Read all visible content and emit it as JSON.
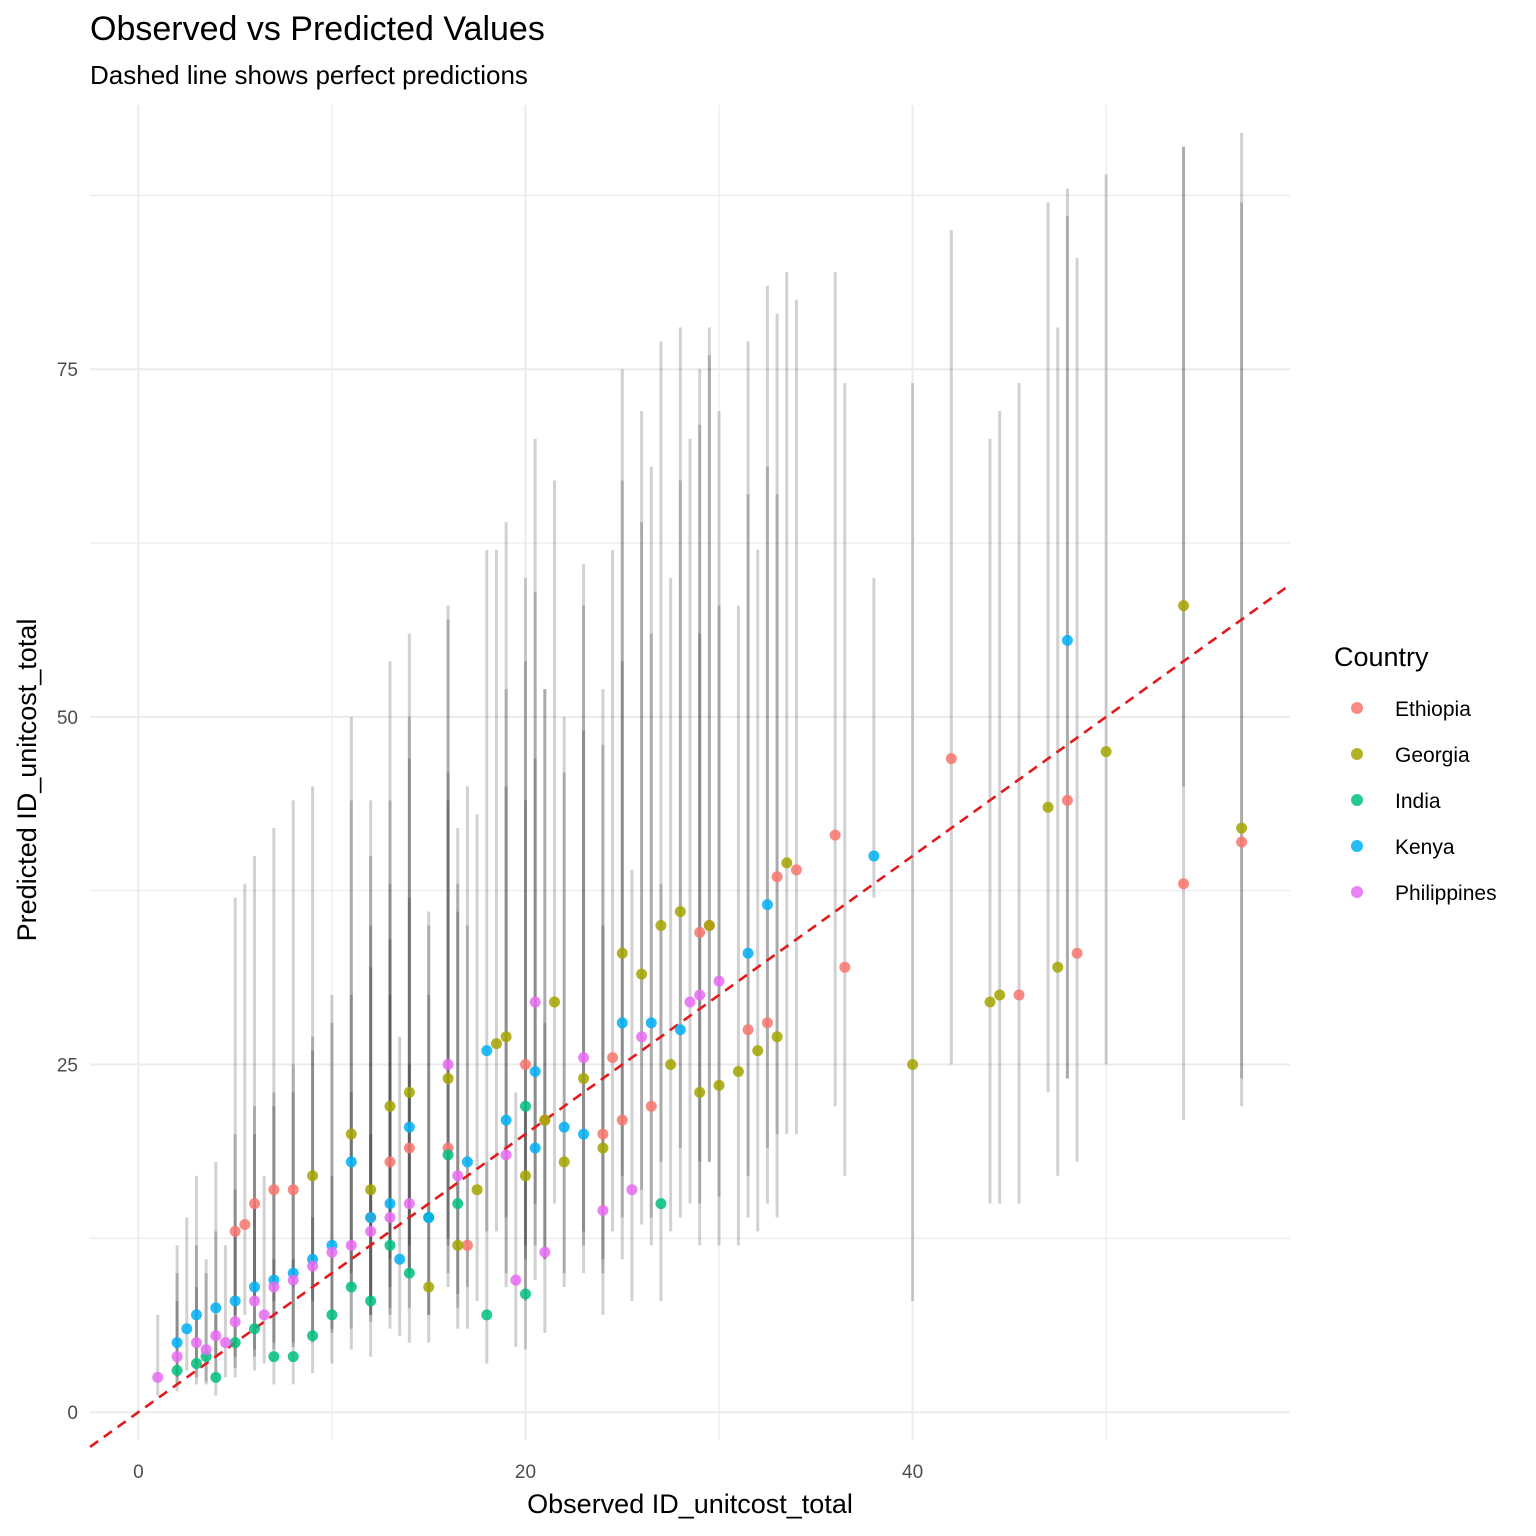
{
  "chart_data": {
    "type": "scatter",
    "title": "Observed vs Predicted Values",
    "subtitle": "Dashed line shows perfect predictions",
    "xlabel": "Observed ID_unitcost_total",
    "ylabel": "Predicted ID_unitcost_total",
    "xlim": [
      -2.5,
      59.5
    ],
    "ylim": [
      -2,
      94
    ],
    "x_ticks": [
      0,
      20,
      40
    ],
    "y_ticks": [
      0,
      25,
      50,
      75
    ],
    "grid": true,
    "reference_line": {
      "style": "dashed",
      "color": "#e31a1c",
      "slope": 1,
      "intercept": 0,
      "label": "perfect predictions"
    },
    "error_bars": {
      "color": "#000000",
      "opacity": 0.18,
      "description": "prediction interval per point"
    },
    "legend": {
      "title": "Country",
      "position": "right",
      "entries": [
        {
          "name": "Ethiopia",
          "color": "#F8766D"
        },
        {
          "name": "Georgia",
          "color": "#A3A500"
        },
        {
          "name": "India",
          "color": "#00BF7D"
        },
        {
          "name": "Kenya",
          "color": "#00B0F6"
        },
        {
          "name": "Philippines",
          "color": "#E76BF3"
        }
      ]
    },
    "series": [
      {
        "name": "Ethiopia",
        "points": [
          [
            5,
            13,
            7,
            37
          ],
          [
            5.5,
            13.5,
            7,
            38
          ],
          [
            6,
            15,
            8,
            40
          ],
          [
            7,
            16,
            8,
            42
          ],
          [
            8,
            16,
            9,
            44
          ],
          [
            13,
            18,
            9,
            44
          ],
          [
            14,
            19,
            10,
            47
          ],
          [
            16,
            19,
            10,
            46
          ],
          [
            20,
            25,
            12,
            60
          ],
          [
            21,
            21,
            11,
            52
          ],
          [
            24,
            20,
            11,
            52
          ],
          [
            24.5,
            25.5,
            13,
            62
          ],
          [
            25,
            21,
            11,
            54
          ],
          [
            26.5,
            22,
            12,
            56
          ],
          [
            29,
            34.5,
            18,
            75
          ],
          [
            29.5,
            35,
            18,
            76
          ],
          [
            31.5,
            27.5,
            14,
            66
          ],
          [
            32.5,
            28,
            15,
            68
          ],
          [
            33,
            38.5,
            20,
            79
          ],
          [
            34,
            39,
            20,
            80
          ],
          [
            36,
            41.5,
            22,
            82
          ],
          [
            36.5,
            32,
            17,
            74
          ],
          [
            42,
            47,
            25,
            85
          ],
          [
            45.5,
            30,
            15,
            74
          ],
          [
            48,
            44,
            24,
            86
          ],
          [
            48.5,
            33,
            18,
            83
          ],
          [
            54,
            38,
            21,
            91
          ],
          [
            57,
            41,
            22,
            87
          ],
          [
            17,
            12,
            6,
            35
          ],
          [
            12,
            14,
            7,
            40
          ]
        ]
      },
      {
        "name": "Georgia",
        "points": [
          [
            11,
            20,
            10,
            50
          ],
          [
            12,
            16,
            8,
            44
          ],
          [
            13,
            22,
            11,
            54
          ],
          [
            14,
            23,
            12,
            56
          ],
          [
            15,
            9,
            5,
            30
          ],
          [
            16,
            24,
            12,
            57
          ],
          [
            17.5,
            16,
            8,
            43
          ],
          [
            18.5,
            26.5,
            13,
            62
          ],
          [
            19,
            27,
            14,
            64
          ],
          [
            20,
            17,
            8,
            44
          ],
          [
            21,
            21,
            11,
            52
          ],
          [
            21.5,
            29.5,
            15,
            67
          ],
          [
            22,
            18,
            9,
            46
          ],
          [
            23,
            24,
            12,
            58
          ],
          [
            24,
            19,
            10,
            48
          ],
          [
            25,
            33,
            17,
            75
          ],
          [
            26,
            31.5,
            16,
            72
          ],
          [
            27,
            35,
            18,
            77
          ],
          [
            27.5,
            25,
            13,
            60
          ],
          [
            28,
            36,
            19,
            78
          ],
          [
            29,
            23,
            12,
            56
          ],
          [
            29.5,
            35,
            18,
            78
          ],
          [
            30,
            23.5,
            12,
            58
          ],
          [
            31,
            24.5,
            12,
            58
          ],
          [
            32,
            26,
            13,
            62
          ],
          [
            33,
            27,
            14,
            66
          ],
          [
            33.5,
            39.5,
            20,
            82
          ],
          [
            40,
            25,
            8,
            74
          ],
          [
            44,
            29.5,
            15,
            70
          ],
          [
            44.5,
            30,
            15,
            72
          ],
          [
            47,
            43.5,
            23,
            87
          ],
          [
            47.5,
            32,
            17,
            78
          ],
          [
            50,
            47.5,
            25,
            89
          ],
          [
            54,
            58,
            45,
            91
          ],
          [
            57,
            42,
            24,
            92
          ],
          [
            9,
            17,
            8,
            45
          ],
          [
            16.5,
            12,
            6,
            36
          ]
        ]
      },
      {
        "name": "India",
        "points": [
          [
            2,
            3,
            1.5,
            8
          ],
          [
            3,
            3.5,
            2,
            9
          ],
          [
            3.5,
            4,
            2,
            10
          ],
          [
            4,
            2.5,
            1.2,
            7
          ],
          [
            5,
            5,
            2.5,
            13
          ],
          [
            6,
            6,
            3,
            15
          ],
          [
            7,
            4,
            2,
            11
          ],
          [
            8,
            4,
            2,
            11
          ],
          [
            9,
            5.5,
            2.8,
            14
          ],
          [
            10,
            7,
            3.5,
            17
          ],
          [
            12,
            8,
            4,
            20
          ],
          [
            14,
            10,
            5,
            25
          ],
          [
            15,
            14,
            7,
            35
          ],
          [
            16,
            18.5,
            9,
            44
          ],
          [
            18,
            7,
            3.5,
            18
          ],
          [
            20,
            8.5,
            4.5,
            22
          ],
          [
            20,
            22,
            11,
            54
          ],
          [
            27,
            15,
            8,
            38
          ],
          [
            13,
            12,
            6,
            30
          ],
          [
            11,
            9,
            4.5,
            23
          ],
          [
            16.5,
            15,
            7.5,
            38
          ]
        ]
      },
      {
        "name": "Kenya",
        "points": [
          [
            2,
            5,
            2.5,
            12
          ],
          [
            2.5,
            6,
            3,
            14
          ],
          [
            3,
            7,
            3.5,
            17
          ],
          [
            4,
            7.5,
            4,
            18
          ],
          [
            5,
            8,
            4,
            20
          ],
          [
            6,
            9,
            4.5,
            22
          ],
          [
            7,
            9.5,
            5,
            23
          ],
          [
            8,
            10,
            5,
            25
          ],
          [
            9,
            11,
            5.5,
            27
          ],
          [
            10,
            12,
            6,
            30
          ],
          [
            11,
            18,
            9,
            44
          ],
          [
            12,
            14,
            7,
            35
          ],
          [
            13,
            15,
            7.5,
            38
          ],
          [
            14,
            20.5,
            10,
            50
          ],
          [
            15,
            14,
            7,
            36
          ],
          [
            17,
            18,
            9,
            45
          ],
          [
            18,
            26,
            13,
            62
          ],
          [
            19,
            21,
            10,
            52
          ],
          [
            20.5,
            24.5,
            12,
            59
          ],
          [
            22,
            20.5,
            10,
            50
          ],
          [
            23,
            20,
            10,
            49
          ],
          [
            25,
            28,
            14,
            67
          ],
          [
            26.5,
            28,
            14,
            68
          ],
          [
            28,
            27.5,
            14,
            67
          ],
          [
            31.5,
            33,
            17,
            77
          ],
          [
            32.5,
            36.5,
            19,
            81
          ],
          [
            38,
            40,
            37,
            60
          ],
          [
            48,
            55.5,
            24,
            88
          ],
          [
            13.5,
            11,
            5.5,
            27
          ],
          [
            20.5,
            19,
            9.5,
            47
          ]
        ]
      },
      {
        "name": "Philippines",
        "points": [
          [
            1,
            2.5,
            1.2,
            7
          ],
          [
            2,
            4,
            2,
            10
          ],
          [
            3,
            5,
            2.5,
            12
          ],
          [
            4,
            5.5,
            2.7,
            13
          ],
          [
            5,
            6.5,
            3.2,
            16
          ],
          [
            6,
            8,
            4,
            20
          ],
          [
            7,
            9,
            4.5,
            22
          ],
          [
            8,
            9.5,
            4.7,
            23
          ],
          [
            9,
            10.5,
            5,
            26
          ],
          [
            10,
            11.5,
            5.7,
            28
          ],
          [
            11,
            12,
            6,
            30
          ],
          [
            12,
            13,
            6.5,
            32
          ],
          [
            13,
            14,
            7,
            34
          ],
          [
            14,
            15,
            7.5,
            37
          ],
          [
            16,
            25,
            12.5,
            58
          ],
          [
            16.5,
            17,
            8.5,
            42
          ],
          [
            19,
            18.5,
            9,
            45
          ],
          [
            19.5,
            9.5,
            4.7,
            23
          ],
          [
            20.5,
            29.5,
            15,
            70
          ],
          [
            21,
            11.5,
            5.7,
            28
          ],
          [
            23,
            25.5,
            13,
            61
          ],
          [
            24,
            14.5,
            7,
            35
          ],
          [
            25.5,
            16,
            8,
            39
          ],
          [
            26,
            27,
            13.5,
            64
          ],
          [
            28.5,
            29.5,
            15,
            70
          ],
          [
            29,
            30,
            15,
            71
          ],
          [
            30,
            31,
            15.5,
            72
          ],
          [
            3.5,
            4.5,
            2.2,
            11
          ],
          [
            4.5,
            5,
            2.5,
            12
          ],
          [
            6.5,
            7,
            3.5,
            17
          ]
        ]
      }
    ]
  }
}
